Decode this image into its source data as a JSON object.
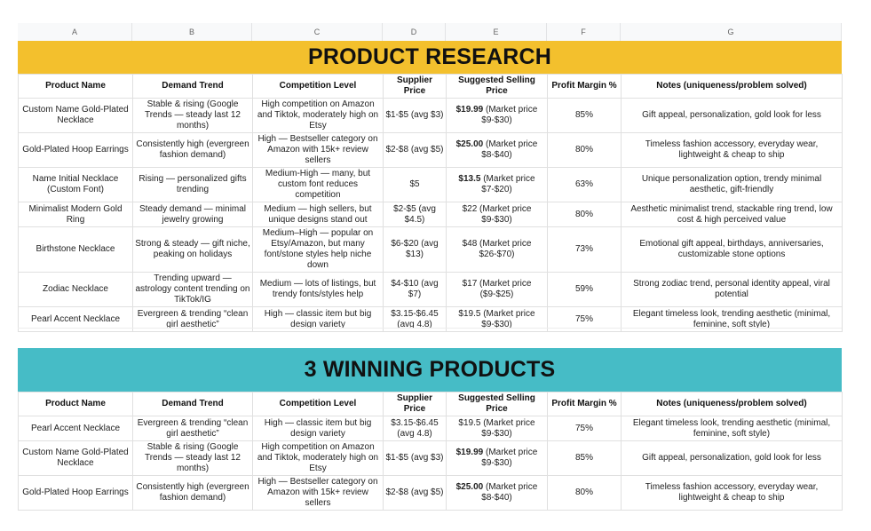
{
  "column_headers": [
    "A",
    "B",
    "C",
    "D",
    "E",
    "F",
    "G"
  ],
  "section1": {
    "title": "PRODUCT RESEARCH",
    "headers": [
      "Product Name",
      "Demand Trend",
      "Competition Level",
      "Supplier Price",
      "Suggested Selling Price",
      "Profit Margin %",
      "Notes (uniqueness/problem solved)"
    ],
    "rows": [
      {
        "name": "Custom Name Gold-Plated Necklace",
        "demand": "Stable & rising (Google Trends — steady last 12 months)",
        "competition": "High competition on Amazon and Tiktok, moderately high on Etsy",
        "supplier": "$1-$5 (avg $3)",
        "price_main": "$19.99",
        "price_sub": "(Market price $9-$30)",
        "margin": "85%",
        "notes": "Gift appeal, personalization, gold look for less"
      },
      {
        "name": "Gold-Plated Hoop Earrings",
        "demand": "Consistently high (evergreen fashion demand)",
        "competition": "High — Bestseller category on Amazon with 15k+ review sellers",
        "supplier": "$2-$8 (avg $5)",
        "price_main": "$25.00",
        "price_sub": "(Market price $8-$40)",
        "margin": "80%",
        "notes": "Timeless fashion accessory, everyday wear, lightweight & cheap to ship"
      },
      {
        "name": "Name Initial Necklace (Custom Font)",
        "demand": "Rising — personalized gifts trending",
        "competition": "Medium-High — many, but custom font reduces competition",
        "supplier": "$5",
        "price_main": "$13.5",
        "price_sub": "(Market price $7-$20)",
        "margin": "63%",
        "notes": "Unique personalization option, trendy minimal aesthetic, gift-friendly"
      },
      {
        "name": "Minimalist Modern Gold Ring",
        "demand": "Steady demand — minimal jewelry growing",
        "competition": "Medium — high sellers, but unique designs stand out",
        "supplier": "$2-$5 (avg $4.5)",
        "price_main": "$22",
        "price_sub": "(Market price $9-$30)",
        "margin": "80%",
        "notes": "Aesthetic minimalist trend, stackable ring trend, low cost & high perceived value"
      },
      {
        "name": "Birthstone Necklace",
        "demand": "Strong & steady — gift niche, peaking on holidays",
        "competition": "Medium–High — popular on Etsy/Amazon, but many font/stone styles help niche down",
        "supplier": "$6-$20 (avg $13)",
        "price_main": "$48",
        "price_sub": "(Market price $26-$70)",
        "margin": "73%",
        "notes": "Emotional gift appeal, birthdays, anniversaries, customizable stone options"
      },
      {
        "name": "Zodiac Necklace",
        "demand": "Trending upward — astrology content trending on TikTok/IG",
        "competition": "Medium — lots of listings, but trendy fonts/styles help",
        "supplier": "$4-$10 (avg $7)",
        "price_main": "$17",
        "price_sub": "(Market price ($9-$25)",
        "margin": "59%",
        "notes": "Strong zodiac trend, personal identity appeal, viral potential"
      },
      {
        "name": "Pearl Accent Necklace",
        "demand": "Evergreen & trending “clean girl aesthetic”",
        "competition": "High — classic item but big design variety",
        "supplier": "$3.15-$6.45 (avg 4.8)",
        "price_main": "$19.5",
        "price_sub": "(Market price $9-$30)",
        "margin": "75%",
        "notes": "Elegant timeless look, trending aesthetic (minimal, feminine, soft style)"
      }
    ]
  },
  "section2": {
    "title": "3 WINNING PRODUCTS",
    "rows": [
      {
        "name": "Pearl Accent Necklace",
        "demand": "Evergreen & trending “clean girl aesthetic”",
        "competition": "High — classic item but big design variety",
        "supplier": "$3.15-$6.45 (avg 4.8)",
        "price_main": "$19.5",
        "price_sub": "(Market price $9-$30)",
        "margin": "75%",
        "notes": "Elegant timeless look, trending aesthetic (minimal, feminine, soft style)"
      },
      {
        "name": "Custom Name Gold-Plated Necklace",
        "demand": "Stable & rising (Google Trends — steady last 12 months)",
        "competition": "High competition on Amazon and Tiktok, moderately high on Etsy",
        "supplier": "$1-$5 (avg $3)",
        "price_main": "$19.99",
        "price_sub": "(Market price $9-$30)",
        "margin": "85%",
        "notes": "Gift appeal, personalization, gold look for less"
      },
      {
        "name": "Gold-Plated Hoop Earrings",
        "demand": "Consistently high (evergreen fashion demand)",
        "competition": "High — Bestseller category on Amazon with 15k+ review sellers",
        "supplier": "$2-$8 (avg $5)",
        "price_main": "$25.00",
        "price_sub": "(Market price $8-$40)",
        "margin": "80%",
        "notes": "Timeless fashion accessory, everyday wear, lightweight & cheap to ship"
      }
    ]
  }
}
